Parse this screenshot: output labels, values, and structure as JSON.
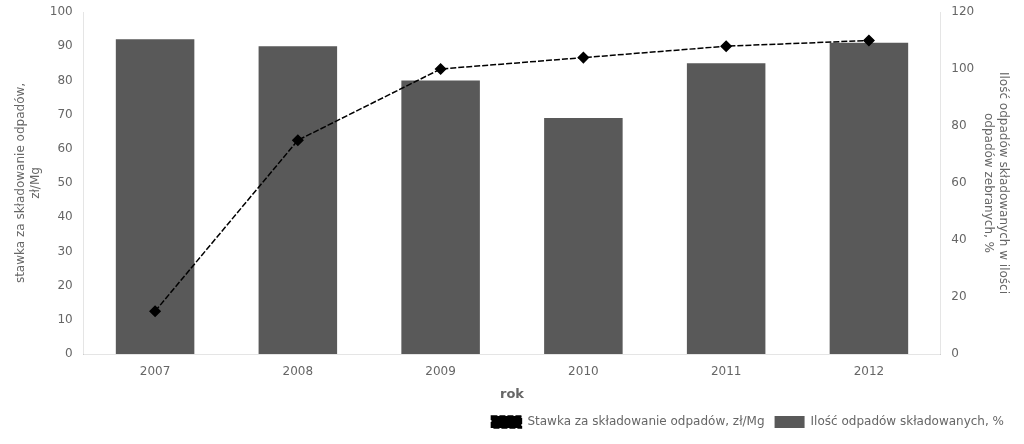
{
  "chart_data": {
    "type": "bar",
    "categories": [
      "2007",
      "2008",
      "2009",
      "2010",
      "2011",
      "2012"
    ],
    "xlabel": "rok",
    "ylabel": "stawka za składowanie odpadów,\nzł/Mg",
    "y2label": "Ilość odpadów składowanych w ilości\nodpadów zebranych, %",
    "series": [
      {
        "name": "Ilość odpadów składowanych, %",
        "type": "bar",
        "color": "#595959",
        "values": [
          92,
          90,
          80,
          69,
          85,
          91
        ]
      },
      {
        "name": "Stawka za składowanie odpadów, zł/Mg",
        "type": "line",
        "color": "#000000",
        "marker": "diamond",
        "line_style": "dashed",
        "axis": "y2",
        "values": [
          15,
          75,
          100,
          104,
          108,
          110
        ]
      }
    ],
    "ylim": [
      0,
      100
    ],
    "yticks": [
      0,
      10,
      20,
      30,
      40,
      50,
      60,
      70,
      80,
      90,
      100
    ],
    "y2lim": [
      0,
      120
    ],
    "y2ticks": [
      0,
      20,
      40,
      60,
      80,
      100,
      120
    ],
    "grid": false,
    "legend": "lower right"
  }
}
